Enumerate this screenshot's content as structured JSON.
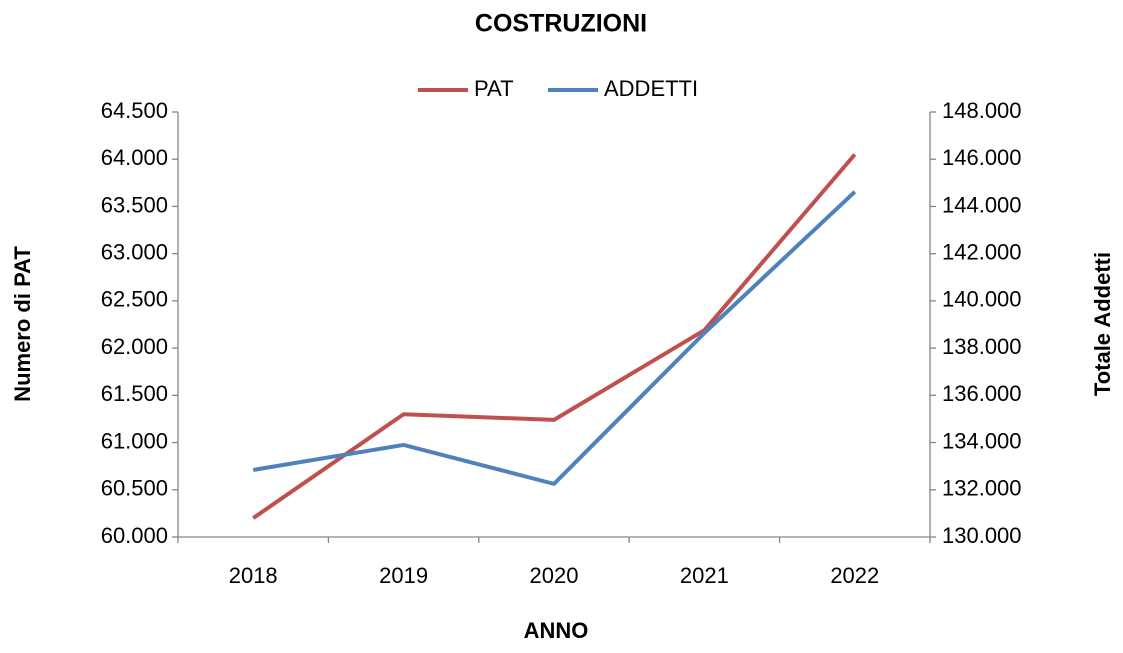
{
  "chart_data": {
    "type": "line",
    "title": "COSTRUZIONI",
    "x_label": "ANNO",
    "y_label": "Numero di PAT",
    "y2_label": "Totale Addetti",
    "categories": [
      "2018",
      "2019",
      "2020",
      "2021",
      "2022"
    ],
    "series": [
      {
        "name": "PAT",
        "color": "#c0504d",
        "values": [
          60200,
          61300,
          61240,
          62190,
          64050
        ]
      },
      {
        "name": "ADDETTI",
        "color": "#4f81bd",
        "axis": "y2",
        "values": [
          132840,
          133900,
          132250,
          138640,
          144620
        ]
      }
    ],
    "ylim": [
      60000,
      64500
    ],
    "yticks": [
      {
        "value": 60000,
        "label": "60.000"
      },
      {
        "value": 60500,
        "label": "60.500"
      },
      {
        "value": 61000,
        "label": "61.000"
      },
      {
        "value": 61500,
        "label": "61.500"
      },
      {
        "value": 62000,
        "label": "62.000"
      },
      {
        "value": 62500,
        "label": "62.500"
      },
      {
        "value": 63000,
        "label": "63.000"
      },
      {
        "value": 63500,
        "label": "63.500"
      },
      {
        "value": 64000,
        "label": "64.000"
      },
      {
        "value": 64500,
        "label": "64.500"
      }
    ],
    "y2lim": [
      130000,
      148000
    ],
    "y2ticks": [
      {
        "value": 130000,
        "label": "130.000"
      },
      {
        "value": 132000,
        "label": "132.000"
      },
      {
        "value": 134000,
        "label": "134.000"
      },
      {
        "value": 136000,
        "label": "136.000"
      },
      {
        "value": 138000,
        "label": "138.000"
      },
      {
        "value": 140000,
        "label": "140.000"
      },
      {
        "value": 142000,
        "label": "142.000"
      },
      {
        "value": 144000,
        "label": "144.000"
      },
      {
        "value": 146000,
        "label": "146.000"
      },
      {
        "value": 148000,
        "label": "148.000"
      }
    ],
    "grid": false,
    "legend": "top"
  }
}
